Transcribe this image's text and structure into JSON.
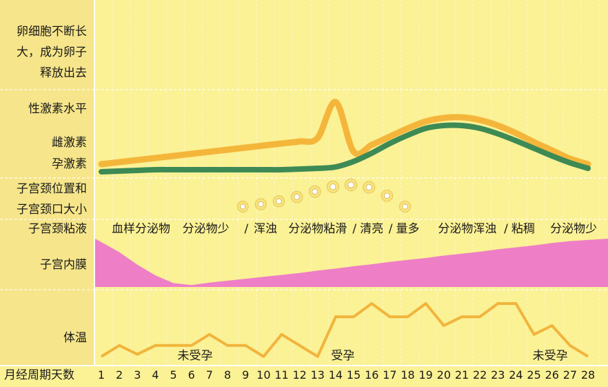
{
  "labels": {
    "egg": [
      "卵细胞不断长",
      "大，成为卵子",
      "释放出去"
    ],
    "hormone_level": "性激素水平",
    "estrogen": "雌激素",
    "progesterone": "孕激素",
    "cervix": [
      "子宫颈位置和",
      "子宫颈口大小"
    ],
    "cervical_mucus": "子宫颈粘液",
    "endometrium": "子宫内膜",
    "temperature": "体温",
    "day_axis": "月经周期天数"
  },
  "mucus_phases": [
    {
      "text": "血样分泌物",
      "center_day": 3.2
    },
    {
      "text": "分泌物少",
      "center_day": 6.8
    },
    {
      "text": "/",
      "center_day": 9.05
    },
    {
      "text": "浑浊",
      "center_day": 10.1
    },
    {
      "text": "分泌物粘滑",
      "center_day": 13.0
    },
    {
      "text": "/",
      "center_day": 15.05
    },
    {
      "text": "清亮",
      "center_day": 16.0
    },
    {
      "text": "/",
      "center_day": 17.05
    },
    {
      "text": "量多",
      "center_day": 18.0
    },
    {
      "text": "分泌物浑浊",
      "center_day": 21.3
    },
    {
      "text": "/",
      "center_day": 23.45
    },
    {
      "text": "粘稠",
      "center_day": 24.4
    },
    {
      "text": "分泌物少",
      "center_day": 27.2
    }
  ],
  "temperature_notes": [
    {
      "text": "未受孕",
      "center_day": 6.2
    },
    {
      "text": "受孕",
      "center_day": 14.4
    },
    {
      "text": "未受孕",
      "center_day": 25.9
    }
  ],
  "colors": {
    "background": "#fbf195",
    "label_column": "#f6e58a",
    "grid": "#ffffff",
    "estrogen": "#f4b63a",
    "progesterone": "#3d8a55",
    "endometrium": "#ee7ec6",
    "temperature": "#f1b43c",
    "cervix_outer": "#fbe27a",
    "cervix_inner": "#ffffff"
  },
  "chart_data": {
    "type": "line",
    "x": [
      1,
      2,
      3,
      4,
      5,
      6,
      7,
      8,
      9,
      10,
      11,
      12,
      13,
      14,
      15,
      16,
      17,
      18,
      19,
      20,
      21,
      22,
      23,
      24,
      25,
      26,
      27,
      28
    ],
    "x_tick_labels": [
      "1",
      "2",
      "3",
      "4",
      "5",
      "6",
      "7",
      "8",
      "9",
      "10",
      "11",
      "12",
      "13",
      "14",
      "15",
      "16",
      "17",
      "18",
      "19",
      "20",
      "21",
      "22",
      "23",
      "24",
      "25",
      "26",
      "27",
      "28"
    ],
    "series": [
      {
        "name": "雌激素",
        "panel": "hormone",
        "values": [
          0.1,
          0.13,
          0.16,
          0.19,
          0.22,
          0.25,
          0.28,
          0.31,
          0.34,
          0.37,
          0.4,
          0.43,
          0.48,
          1.0,
          0.28,
          0.38,
          0.5,
          0.62,
          0.72,
          0.77,
          0.78,
          0.74,
          0.66,
          0.55,
          0.42,
          0.3,
          0.18,
          0.1
        ]
      },
      {
        "name": "孕激素",
        "panel": "hormone",
        "values": [
          0.03,
          0.04,
          0.05,
          0.06,
          0.06,
          0.06,
          0.06,
          0.06,
          0.06,
          0.06,
          0.06,
          0.07,
          0.08,
          0.1,
          0.18,
          0.3,
          0.44,
          0.56,
          0.66,
          0.7,
          0.7,
          0.66,
          0.58,
          0.48,
          0.37,
          0.26,
          0.16,
          0.08
        ]
      },
      {
        "name": "子宫内膜",
        "panel": "endometrium",
        "values": [
          1.0,
          0.72,
          0.46,
          0.24,
          0.08,
          0.04,
          0.09,
          0.13,
          0.17,
          0.21,
          0.25,
          0.29,
          0.34,
          0.38,
          0.43,
          0.47,
          0.52,
          0.56,
          0.6,
          0.65,
          0.69,
          0.73,
          0.78,
          0.82,
          0.86,
          0.91,
          0.95,
          1.0
        ]
      },
      {
        "name": "体温",
        "panel": "temperature",
        "values": [
          0.05,
          0.3,
          0.1,
          0.3,
          0.3,
          0.3,
          0.55,
          0.3,
          0.3,
          0.05,
          0.55,
          0.3,
          0.05,
          0.95,
          0.95,
          1.25,
          0.95,
          0.95,
          1.25,
          0.75,
          0.95,
          0.95,
          1.25,
          1.25,
          0.55,
          0.75,
          0.3,
          0.05
        ]
      },
      {
        "name": "子宫颈位置和子宫颈口大小",
        "panel": "cervix",
        "x": [
          9,
          10,
          11,
          12,
          13,
          14,
          15,
          16,
          17,
          18
        ],
        "values": [
          0.1,
          0.2,
          0.32,
          0.5,
          0.72,
          0.92,
          1.0,
          0.9,
          0.55,
          0.1
        ],
        "sizes": [
          0.65,
          0.7,
          0.72,
          0.76,
          0.8,
          0.86,
          0.92,
          0.86,
          0.76,
          0.68
        ]
      }
    ],
    "xlabel": "月经周期天数",
    "grid": true
  }
}
